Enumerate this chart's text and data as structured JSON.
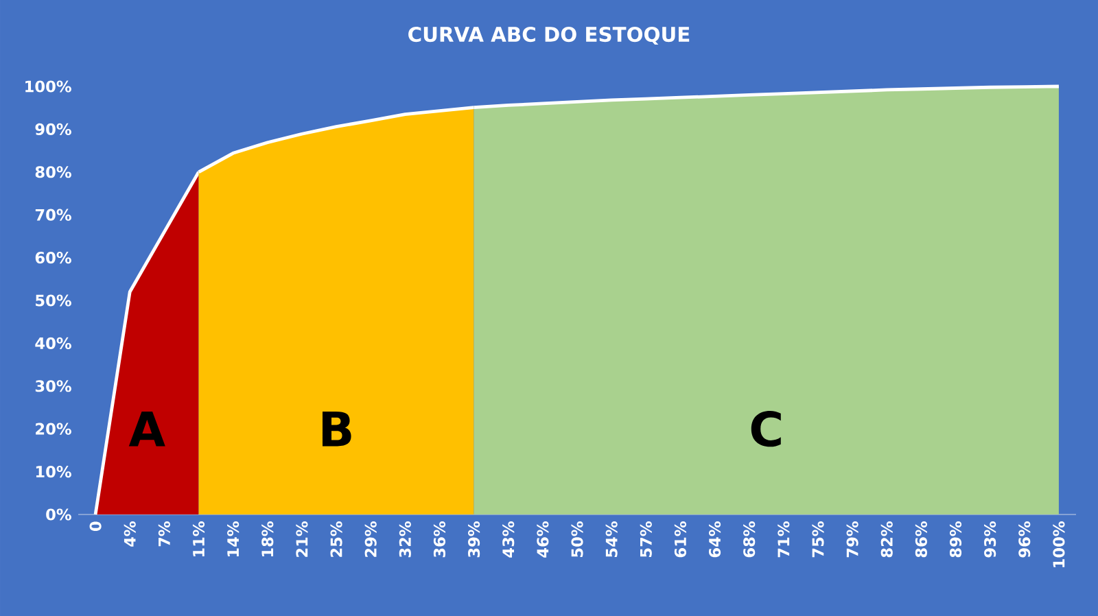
{
  "chart_data": {
    "type": "area",
    "title": "CURVA ABC DO ESTOQUE",
    "categories": [
      "0",
      "4%",
      "7%",
      "11%",
      "14%",
      "18%",
      "21%",
      "25%",
      "29%",
      "32%",
      "36%",
      "39%",
      "43%",
      "46%",
      "50%",
      "54%",
      "57%",
      "61%",
      "64%",
      "68%",
      "71%",
      "75%",
      "79%",
      "82%",
      "86%",
      "89%",
      "93%",
      "96%",
      "100%"
    ],
    "series": [
      {
        "name": "A",
        "color": "#c00000",
        "values": [
          0,
          52,
          66,
          80,
          null,
          null,
          null,
          null,
          null,
          null,
          null,
          null,
          null,
          null,
          null,
          null,
          null,
          null,
          null,
          null,
          null,
          null,
          null,
          null,
          null,
          null,
          null,
          null,
          null
        ]
      },
      {
        "name": "B",
        "color": "#ffc000",
        "values": [
          null,
          null,
          null,
          80,
          84.4,
          86.9,
          88.9,
          90.6,
          92,
          93.5,
          94.3,
          95.1,
          null,
          null,
          null,
          null,
          null,
          null,
          null,
          null,
          null,
          null,
          null,
          null,
          null,
          null,
          null,
          null,
          null
        ]
      },
      {
        "name": "C",
        "color": "#a9d18e",
        "values": [
          null,
          null,
          null,
          null,
          null,
          null,
          null,
          null,
          null,
          null,
          null,
          95.1,
          95.6,
          96,
          96.4,
          96.8,
          97.1,
          97.4,
          97.7,
          98,
          98.3,
          98.6,
          98.9,
          99.2,
          99.4,
          99.6,
          99.8,
          99.9,
          100
        ]
      }
    ],
    "ylim": [
      0,
      100
    ],
    "yticks": [
      {
        "value": 0,
        "label": "0%"
      },
      {
        "value": 10,
        "label": "10%"
      },
      {
        "value": 20,
        "label": "20%"
      },
      {
        "value": 30,
        "label": "30%"
      },
      {
        "value": 40,
        "label": "40%"
      },
      {
        "value": 50,
        "label": "50%"
      },
      {
        "value": 60,
        "label": "60%"
      },
      {
        "value": 70,
        "label": "70%"
      },
      {
        "value": 80,
        "label": "80%"
      },
      {
        "value": 90,
        "label": "90%"
      },
      {
        "value": 100,
        "label": "100%"
      }
    ],
    "grid": false,
    "legend": false,
    "marker": "none",
    "line_style": "solid"
  }
}
